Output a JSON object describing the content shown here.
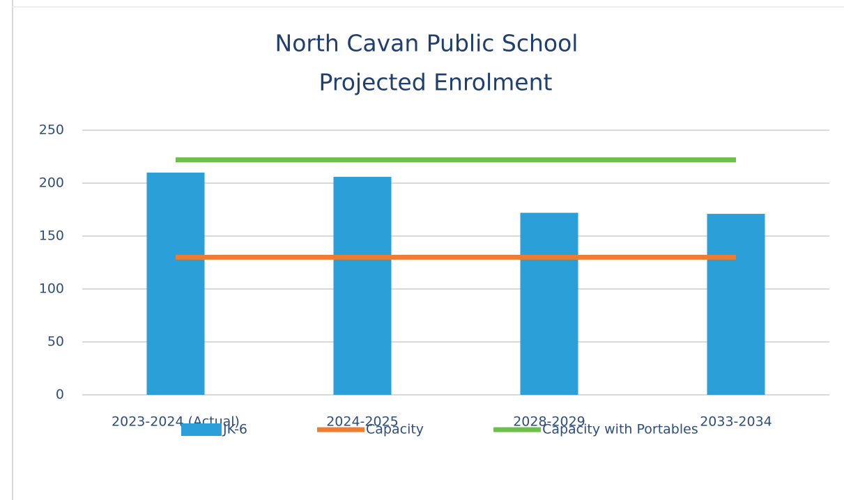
{
  "chart_data": {
    "type": "bar",
    "title": [
      "North Cavan Public School",
      "Projected Enrolment"
    ],
    "categories": [
      "2023-2024 (Actual)",
      "2024-2025",
      "2028-2029",
      "2033-2034"
    ],
    "series": [
      {
        "name": "JK-6",
        "type": "bar",
        "color": "#2a9fd8",
        "values": [
          210,
          206,
          172,
          171
        ]
      },
      {
        "name": "Capacity",
        "type": "line",
        "color": "#ed7d31",
        "values": [
          130,
          130,
          130,
          130
        ]
      },
      {
        "name": "Capacity with Portables",
        "type": "line",
        "color": "#6cbf4b",
        "values": [
          222,
          222,
          222,
          222
        ]
      }
    ],
    "ylim": [
      0,
      250
    ],
    "yticks": [
      0,
      50,
      100,
      150,
      200,
      250
    ],
    "grid": true,
    "legend": "bottom"
  }
}
